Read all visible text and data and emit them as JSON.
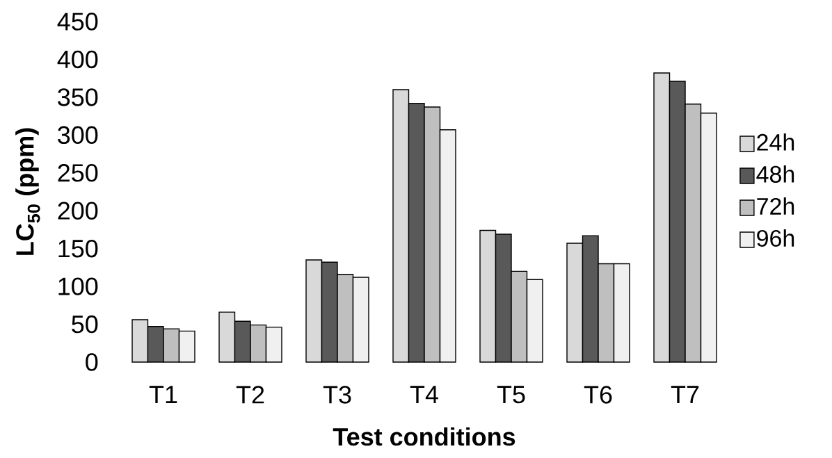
{
  "chart_data": {
    "type": "bar",
    "xlabel": "Test conditions",
    "ylabel": "LC$_{50}$ (ppm)",
    "categories": [
      "T1",
      "T2",
      "T3",
      "T4",
      "T5",
      "T6",
      "T7"
    ],
    "series": [
      {
        "name": "24h",
        "color": "#d9d9d9",
        "values": [
          56,
          66,
          135,
          360,
          174,
          157,
          382
        ]
      },
      {
        "name": "48h",
        "color": "#595959",
        "values": [
          47,
          54,
          132,
          342,
          169,
          167,
          371
        ]
      },
      {
        "name": "72h",
        "color": "#bfbfbf",
        "values": [
          44,
          49,
          116,
          337,
          120,
          130,
          341
        ]
      },
      {
        "name": "96h",
        "color": "#f0f0f0",
        "values": [
          41,
          46,
          112,
          307,
          109,
          130,
          329
        ]
      }
    ],
    "ylim": [
      0,
      450
    ],
    "yticks": [
      0,
      50,
      100,
      150,
      200,
      250,
      300,
      350,
      400,
      450
    ],
    "grid": false,
    "legend": "right"
  }
}
